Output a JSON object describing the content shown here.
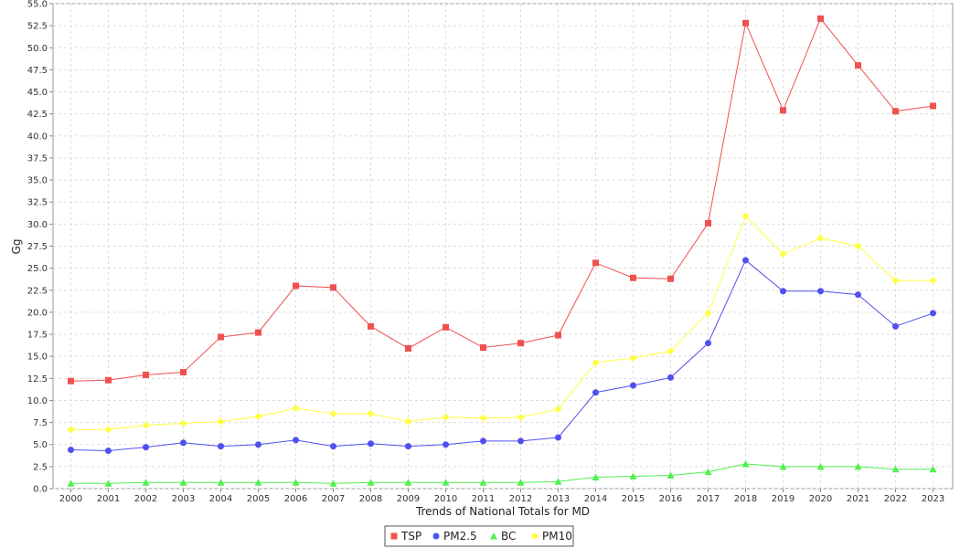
{
  "chart_data": {
    "type": "line",
    "title": "",
    "xlabel": "Trends of National Totals for MD",
    "ylabel": "Gg",
    "ylim": [
      0,
      55.0
    ],
    "y_ticks": [
      "0.0",
      "2.5",
      "5.0",
      "7.5",
      "10.0",
      "12.5",
      "15.0",
      "17.5",
      "20.0",
      "22.5",
      "25.0",
      "27.5",
      "30.0",
      "32.5",
      "35.0",
      "37.5",
      "40.0",
      "42.5",
      "45.0",
      "47.5",
      "50.0",
      "52.5",
      "55.0"
    ],
    "grid": true,
    "legend_position": "bottom-center",
    "categories": [
      "2000",
      "2001",
      "2002",
      "2003",
      "2004",
      "2005",
      "2006",
      "2007",
      "2008",
      "2009",
      "2010",
      "2011",
      "2012",
      "2013",
      "2014",
      "2015",
      "2016",
      "2017",
      "2018",
      "2019",
      "2020",
      "2021",
      "2022",
      "2023"
    ],
    "series": [
      {
        "name": "TSP",
        "color": "#f05050",
        "marker": "square",
        "values": [
          12.2,
          12.3,
          12.9,
          13.2,
          17.2,
          17.7,
          23.0,
          22.8,
          18.4,
          15.9,
          18.3,
          16.0,
          16.5,
          17.4,
          25.6,
          23.9,
          23.8,
          30.1,
          52.8,
          42.9,
          53.3,
          48.0,
          42.8,
          43.4
        ]
      },
      {
        "name": "PM2.5",
        "color": "#5050f0",
        "marker": "circle",
        "values": [
          4.4,
          4.3,
          4.7,
          5.2,
          4.8,
          5.0,
          5.5,
          4.8,
          5.1,
          4.8,
          5.0,
          5.4,
          5.4,
          5.8,
          10.9,
          11.7,
          12.6,
          16.5,
          25.9,
          22.4,
          22.4,
          22.0,
          18.4,
          19.9
        ]
      },
      {
        "name": "BC",
        "color": "#50f050",
        "marker": "triangle",
        "values": [
          0.6,
          0.6,
          0.7,
          0.7,
          0.7,
          0.7,
          0.7,
          0.6,
          0.7,
          0.7,
          0.7,
          0.7,
          0.7,
          0.8,
          1.3,
          1.4,
          1.5,
          1.9,
          2.8,
          2.5,
          2.5,
          2.5,
          2.2,
          2.2
        ]
      },
      {
        "name": "PM10",
        "color": "#ffff40",
        "marker": "diamond",
        "values": [
          6.7,
          6.7,
          7.2,
          7.4,
          7.6,
          8.2,
          9.1,
          8.5,
          8.5,
          7.6,
          8.1,
          8.0,
          8.1,
          9.0,
          14.3,
          14.8,
          15.6,
          19.9,
          30.9,
          26.6,
          28.4,
          27.5,
          23.6,
          23.6
        ]
      }
    ]
  }
}
